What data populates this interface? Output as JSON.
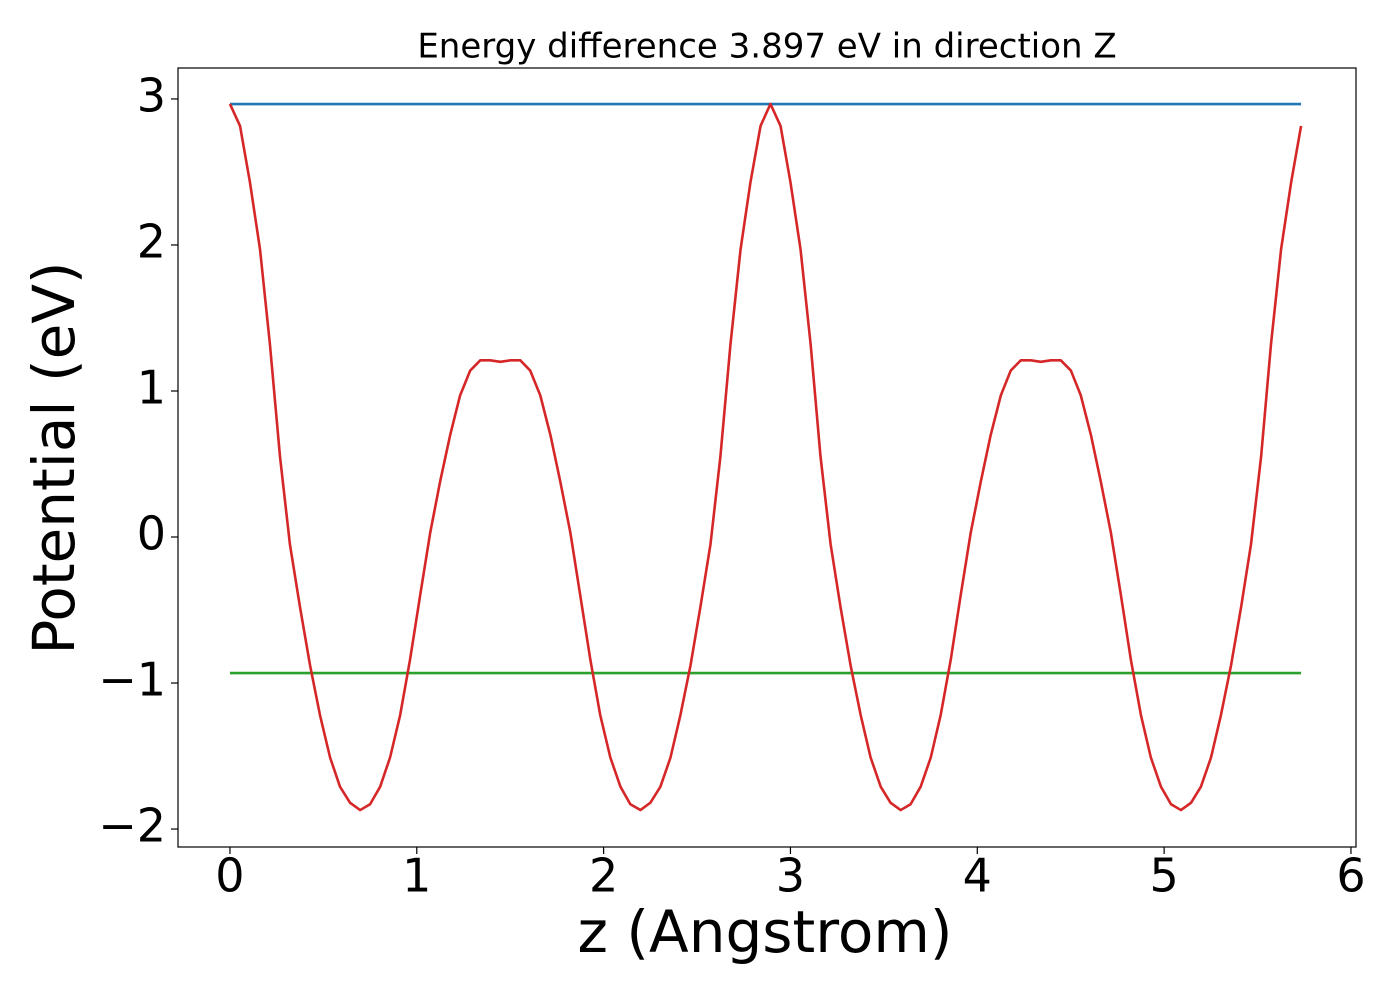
{
  "chart_data": {
    "type": "line",
    "title": "Energy difference 3.897 eV in direction Z",
    "x_label": "z (Angstrom)",
    "y_label": "Potential (eV)",
    "xlim": [
      -0.278,
      6.027
    ],
    "ylim": [
      -2.123,
      3.212
    ],
    "xticks": [
      0,
      1,
      2,
      3,
      4,
      5,
      6
    ],
    "yticks": [
      {
        "value": -2,
        "label": "−2"
      },
      {
        "value": -1,
        "label": "−1"
      },
      0,
      1,
      2,
      3
    ],
    "grid": false,
    "series": [
      {
        "color": "#d62728",
        "x": [
          0.0,
          0.054,
          0.107,
          0.161,
          0.214,
          0.268,
          0.321,
          0.375,
          0.429,
          0.482,
          0.536,
          0.589,
          0.643,
          0.697,
          0.75,
          0.804,
          0.857,
          0.911,
          0.964,
          1.018,
          1.072,
          1.125,
          1.179,
          1.232,
          1.286,
          1.34,
          1.393,
          1.447,
          1.5,
          1.554,
          1.607,
          1.661,
          1.715,
          1.768,
          1.822,
          1.875,
          1.929,
          1.982,
          2.036,
          2.09,
          2.143,
          2.197,
          2.25,
          2.304,
          2.358,
          2.411,
          2.465,
          2.518,
          2.572,
          2.625,
          2.679,
          2.733,
          2.786,
          2.84,
          2.893,
          2.947,
          3.0,
          3.054,
          3.108,
          3.161,
          3.215,
          3.268,
          3.322,
          3.376,
          3.429,
          3.483,
          3.536,
          3.59,
          3.643,
          3.697,
          3.751,
          3.804,
          3.858,
          3.911,
          3.965,
          4.019,
          4.072,
          4.126,
          4.179,
          4.233,
          4.286,
          4.34,
          4.394,
          4.447,
          4.501,
          4.554,
          4.608,
          4.661,
          4.715,
          4.769,
          4.822,
          4.876,
          4.929,
          4.983,
          5.037,
          5.09,
          5.144,
          5.197,
          5.251,
          5.304,
          5.358,
          5.412,
          5.465,
          5.519,
          5.572,
          5.626,
          5.68,
          5.733
        ],
        "values": [
          2.966,
          2.815,
          2.43,
          1.97,
          1.32,
          0.55,
          -0.05,
          -0.48,
          -0.88,
          -1.22,
          -1.51,
          -1.71,
          -1.82,
          -1.87,
          -1.83,
          -1.71,
          -1.51,
          -1.22,
          -0.84,
          -0.4,
          0.03,
          0.38,
          0.7,
          0.97,
          1.14,
          1.21,
          1.21,
          1.2,
          1.21,
          1.21,
          1.14,
          0.97,
          0.7,
          0.38,
          0.03,
          -0.4,
          -0.84,
          -1.22,
          -1.51,
          -1.71,
          -1.83,
          -1.87,
          -1.82,
          -1.71,
          -1.51,
          -1.22,
          -0.88,
          -0.48,
          -0.05,
          0.55,
          1.32,
          1.97,
          2.43,
          2.815,
          2.966,
          2.815,
          2.43,
          1.97,
          1.32,
          0.55,
          -0.05,
          -0.48,
          -0.88,
          -1.22,
          -1.51,
          -1.71,
          -1.82,
          -1.87,
          -1.83,
          -1.71,
          -1.51,
          -1.22,
          -0.84,
          -0.4,
          0.03,
          0.38,
          0.7,
          0.97,
          1.14,
          1.21,
          1.21,
          1.2,
          1.21,
          1.21,
          1.14,
          0.97,
          0.7,
          0.38,
          0.03,
          -0.4,
          -0.84,
          -1.22,
          -1.51,
          -1.71,
          -1.83,
          -1.87,
          -1.82,
          -1.71,
          -1.51,
          -1.22,
          -0.88,
          -0.48,
          -0.05,
          0.55,
          1.32,
          1.97,
          2.43,
          2.815
        ]
      },
      {
        "color": "#1f77b4",
        "x": [
          0,
          5.733
        ],
        "values": [
          2.965,
          2.965
        ]
      },
      {
        "color": "#2ca02c",
        "x": [
          0,
          5.733
        ],
        "values": [
          -0.932,
          -0.932
        ]
      }
    ]
  }
}
